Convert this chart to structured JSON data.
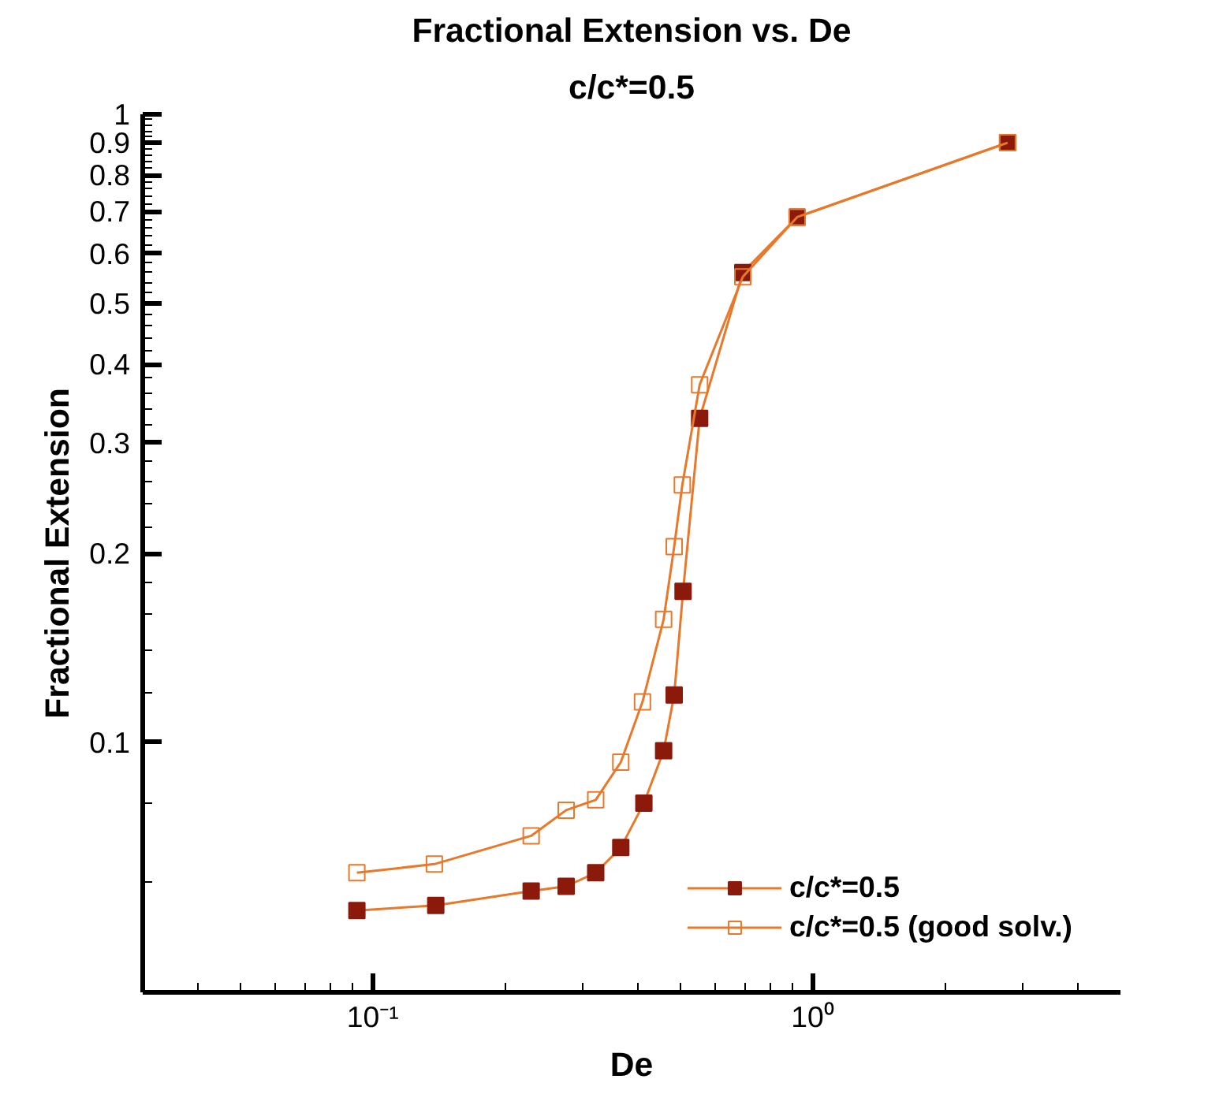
{
  "chart_data": {
    "type": "line",
    "title": "Fractional Extension vs. De",
    "subtitle": "c/c*=0.5",
    "xlabel": "De",
    "ylabel": "Fractional Extension",
    "log": "xy",
    "grid": false,
    "legend": "bottom right",
    "marker": "square",
    "line_style": "solid",
    "xlim": [
      0.03,
      5
    ],
    "ylim": [
      0.04,
      1
    ],
    "xticks": [
      {
        "value": 0.04,
        "label": null
      },
      {
        "value": 0.05,
        "label": null
      },
      {
        "value": 0.06,
        "label": null
      },
      {
        "value": 0.07,
        "label": null
      },
      {
        "value": 0.08,
        "label": null
      },
      {
        "value": 0.09,
        "label": null
      },
      {
        "value": 0.1,
        "label": "10⁻¹"
      },
      {
        "value": 0.2,
        "label": null
      },
      {
        "value": 0.3,
        "label": null
      },
      {
        "value": 0.4,
        "label": null
      },
      {
        "value": 0.5,
        "label": null
      },
      {
        "value": 0.6,
        "label": null
      },
      {
        "value": 0.7,
        "label": null
      },
      {
        "value": 0.8,
        "label": null
      },
      {
        "value": 0.9,
        "label": null
      },
      {
        "value": 1,
        "label": "10⁰"
      },
      {
        "value": 2,
        "label": null
      },
      {
        "value": 3,
        "label": null
      },
      {
        "value": 4,
        "label": null
      }
    ],
    "yticks": [
      {
        "value": 0.04,
        "label": null
      },
      {
        "value": 0.06,
        "label": null
      },
      {
        "value": 0.08,
        "label": null
      },
      0.1,
      {
        "value": 0.12,
        "label": null
      },
      {
        "value": 0.14,
        "label": null
      },
      {
        "value": 0.16,
        "label": null
      },
      {
        "value": 0.18,
        "label": null
      },
      0.2,
      {
        "value": 0.22,
        "label": null
      },
      {
        "value": 0.24,
        "label": null
      },
      {
        "value": 0.26,
        "label": null
      },
      {
        "value": 0.28,
        "label": null
      },
      0.3,
      {
        "value": 0.32,
        "label": null
      },
      {
        "value": 0.34,
        "label": null
      },
      {
        "value": 0.36,
        "label": null
      },
      {
        "value": 0.38,
        "label": null
      },
      0.4,
      {
        "value": 0.42,
        "label": null
      },
      {
        "value": 0.44,
        "label": null
      },
      {
        "value": 0.46,
        "label": null
      },
      {
        "value": 0.48,
        "label": null
      },
      0.5,
      {
        "value": 0.52,
        "label": null
      },
      {
        "value": 0.54,
        "label": null
      },
      {
        "value": 0.56,
        "label": null
      },
      {
        "value": 0.58,
        "label": null
      },
      0.6,
      {
        "value": 0.62,
        "label": null
      },
      {
        "value": 0.64,
        "label": null
      },
      {
        "value": 0.66,
        "label": null
      },
      {
        "value": 0.68,
        "label": null
      },
      0.7,
      {
        "value": 0.72,
        "label": null
      },
      {
        "value": 0.74,
        "label": null
      },
      {
        "value": 0.76,
        "label": null
      },
      {
        "value": 0.78,
        "label": null
      },
      0.8,
      {
        "value": 0.82,
        "label": null
      },
      {
        "value": 0.84,
        "label": null
      },
      {
        "value": 0.86,
        "label": null
      },
      {
        "value": 0.88,
        "label": null
      },
      0.9,
      {
        "value": 0.92,
        "label": null
      },
      {
        "value": 0.94,
        "label": null
      },
      {
        "value": 0.96,
        "label": null
      },
      {
        "value": 0.98,
        "label": null
      },
      1
    ],
    "series": [
      {
        "name": "c/c*=0.5",
        "color": "#8b1a0a",
        "x": [
          0.092,
          0.139,
          0.229,
          0.275,
          0.321,
          0.366,
          0.413,
          0.458,
          0.484,
          0.507,
          0.553,
          0.693,
          0.921,
          2.77
        ],
        "values": [
          0.054,
          0.055,
          0.058,
          0.059,
          0.062,
          0.068,
          0.08,
          0.097,
          0.119,
          0.174,
          0.328,
          0.56,
          0.686,
          0.901
        ]
      },
      {
        "name": "c/c*=0.5 (good solv.)",
        "color": "#e8782a",
        "x": [
          0.092,
          0.138,
          0.229,
          0.275,
          0.321,
          0.366,
          0.41,
          0.458,
          0.484,
          0.505,
          0.553,
          0.693,
          0.921,
          2.77
        ],
        "values": [
          0.062,
          0.064,
          0.071,
          0.078,
          0.081,
          0.093,
          0.116,
          0.157,
          0.205,
          0.257,
          0.371,
          0.551,
          0.686,
          0.901
        ]
      }
    ]
  }
}
